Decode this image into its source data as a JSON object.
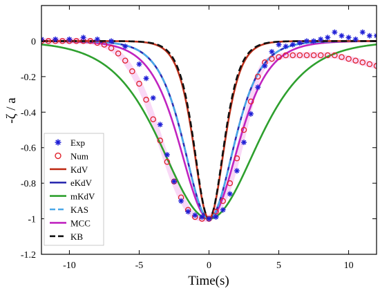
{
  "chart_data": {
    "type": "line",
    "title": "",
    "xlabel": "Time(s)",
    "ylabel": "-ζ / a",
    "xlim": [
      -12,
      12
    ],
    "ylim": [
      -1.2,
      0.2
    ],
    "xticks": [
      "-10",
      "-5",
      "0",
      "5",
      "10"
    ],
    "yticks": [
      "0",
      "-0.2",
      "-0.4",
      "-0.6",
      "-0.8",
      "-1",
      "-1.2"
    ],
    "grid": false,
    "legend_position": "bottom-left",
    "series": [
      {
        "name": "Exp",
        "style": "star-marker",
        "color": "#1f1fd6",
        "x": [
          -12,
          -11,
          -10,
          -9,
          -8,
          -7,
          -6,
          -5,
          -4.5,
          -4,
          -3.5,
          -3,
          -2.5,
          -2,
          -1.5,
          -1,
          -0.5,
          0,
          0.5,
          1,
          1.5,
          2,
          2.5,
          3,
          3.5,
          4,
          4.5,
          5,
          5.5,
          6,
          6.5,
          7,
          7.5,
          8,
          8.5,
          9,
          9.5,
          10,
          10.5,
          11,
          11.5,
          12
        ],
        "y": [
          0.01,
          0.01,
          0.01,
          0.02,
          0.01,
          0.0,
          -0.03,
          -0.13,
          -0.21,
          -0.32,
          -0.47,
          -0.64,
          -0.79,
          -0.9,
          -0.96,
          -0.98,
          -0.99,
          -1.0,
          -0.99,
          -0.95,
          -0.86,
          -0.73,
          -0.57,
          -0.41,
          -0.26,
          -0.14,
          -0.06,
          -0.02,
          -0.03,
          -0.02,
          -0.01,
          0.0,
          0.0,
          0.01,
          0.02,
          0.05,
          0.03,
          0.02,
          0.01,
          0.05,
          0.03,
          0.03
        ]
      },
      {
        "name": "Num",
        "style": "circle-marker",
        "color": "#e0202a",
        "x": [
          -12,
          -11.5,
          -11,
          -10.5,
          -10,
          -9.5,
          -9,
          -8.5,
          -8,
          -7.5,
          -7,
          -6.5,
          -6,
          -5.5,
          -5,
          -4.5,
          -4,
          -3.5,
          -3,
          -2.5,
          -2,
          -1.5,
          -1,
          -0.5,
          0,
          0.5,
          1,
          1.5,
          2,
          2.5,
          3,
          3.5,
          4,
          4.5,
          5,
          5.5,
          6,
          6.5,
          7,
          7.5,
          8,
          8.5,
          9,
          9.5,
          10,
          10.5,
          11,
          11.5,
          12
        ],
        "y": [
          0.0,
          0.0,
          0.0,
          0.0,
          0.0,
          0.0,
          0.0,
          0.0,
          -0.01,
          -0.02,
          -0.04,
          -0.07,
          -0.11,
          -0.17,
          -0.24,
          -0.33,
          -0.44,
          -0.56,
          -0.68,
          -0.79,
          -0.88,
          -0.95,
          -0.99,
          -1.0,
          -1.0,
          -0.96,
          -0.9,
          -0.8,
          -0.66,
          -0.5,
          -0.34,
          -0.2,
          -0.12,
          -0.1,
          -0.09,
          -0.08,
          -0.08,
          -0.08,
          -0.08,
          -0.08,
          -0.08,
          -0.08,
          -0.08,
          -0.09,
          -0.1,
          -0.11,
          -0.12,
          -0.13,
          -0.14
        ]
      },
      {
        "name": "KdV",
        "style": "solid",
        "color": "#c0301a",
        "width_s": 1.45
      },
      {
        "name": "eKdV",
        "style": "solid",
        "color": "#2b2bb0",
        "width_s": 2.35
      },
      {
        "name": "mKdV",
        "style": "solid",
        "color": "#2ea02e",
        "width_s": 4.5
      },
      {
        "name": "KAS",
        "style": "dashed",
        "color": "#4aa8e8",
        "width_s": 2.35
      },
      {
        "name": "MCC",
        "style": "solid",
        "color": "#c024c0",
        "width_s": 2.75
      },
      {
        "name": "KB",
        "style": "dashed",
        "color": "#111111",
        "width_s": 1.4
      }
    ]
  }
}
